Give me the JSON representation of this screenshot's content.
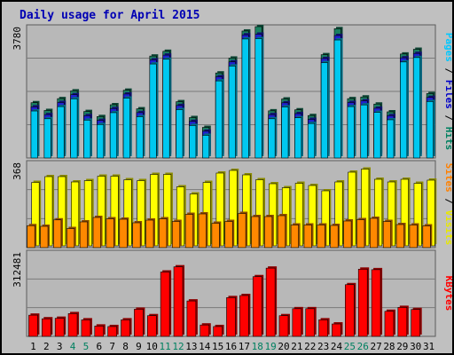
{
  "title": "Daily usage for April 2015",
  "chart_data": [
    {
      "type": "bar",
      "categories": [
        "1",
        "2",
        "3",
        "4",
        "5",
        "6",
        "7",
        "8",
        "9",
        "10",
        "11",
        "12",
        "13",
        "14",
        "15",
        "16",
        "17",
        "18",
        "19",
        "20",
        "21",
        "22",
        "23",
        "24",
        "25",
        "26",
        "27",
        "28",
        "29",
        "30",
        "31"
      ],
      "weekend_days": [
        "4",
        "5",
        "11",
        "12",
        "18",
        "19",
        "25",
        "26"
      ],
      "y_max_label": "3780",
      "ylim": [
        0,
        3780
      ],
      "right_label": [
        "Pages",
        " / ",
        "Files",
        " / ",
        "Hits"
      ],
      "right_label_colors": [
        "#00c8ff",
        "#000000",
        "#0000c8",
        "#000000",
        "#008060"
      ],
      "series": [
        {
          "name": "Hits",
          "color": "#1a8060",
          "values": [
            1530,
            1300,
            1650,
            1880,
            1270,
            1120,
            1470,
            1900,
            1350,
            2910,
            3050,
            1560,
            1090,
            800,
            2410,
            2850,
            3650,
            3780,
            1290,
            1640,
            1320,
            1150,
            2950,
            3720,
            1650,
            1700,
            1490,
            1260,
            2970,
            3110,
            1800
          ]
        },
        {
          "name": "Files",
          "color": "#2020d0",
          "values": [
            1460,
            1230,
            1590,
            1820,
            1200,
            1060,
            1410,
            1840,
            1290,
            2850,
            2990,
            1500,
            1030,
            740,
            2350,
            2790,
            3590,
            3610,
            1230,
            1580,
            1260,
            1090,
            2890,
            3570,
            1590,
            1640,
            1420,
            1200,
            2910,
            3040,
            1740
          ]
        },
        {
          "name": "Pages",
          "color": "#00c8f0",
          "values": [
            1390,
            1160,
            1520,
            1750,
            1120,
            990,
            1340,
            1770,
            1220,
            2780,
            2920,
            1430,
            960,
            670,
            2280,
            2720,
            3520,
            3530,
            1160,
            1510,
            1190,
            1020,
            2820,
            3490,
            1520,
            1570,
            1350,
            1130,
            2840,
            2970,
            1670
          ]
        }
      ]
    },
    {
      "type": "bar",
      "categories": [
        "1",
        "2",
        "3",
        "4",
        "5",
        "6",
        "7",
        "8",
        "9",
        "10",
        "11",
        "12",
        "13",
        "14",
        "15",
        "16",
        "17",
        "18",
        "19",
        "20",
        "21",
        "22",
        "23",
        "24",
        "25",
        "26",
        "27",
        "28",
        "29",
        "30",
        "31"
      ],
      "y_max_label": "368",
      "ylim": [
        0,
        368
      ],
      "right_label": [
        "Sites",
        " / ",
        "Visits"
      ],
      "right_label_colors": [
        "#ff8000",
        "#000000",
        "#e8e800"
      ],
      "series": [
        {
          "name": "Visits",
          "color": "#ffff00",
          "values": [
            286,
            312,
            312,
            288,
            294,
            314,
            314,
            298,
            294,
            322,
            322,
            266,
            234,
            286,
            328,
            340,
            320,
            298,
            280,
            262,
            282,
            272,
            248,
            288,
            332,
            346,
            300,
            288,
            300,
            282,
            296
          ]
        },
        {
          "name": "Sites",
          "color": "#ff8800",
          "values": [
            99,
            96,
            125,
            86,
            116,
            136,
            130,
            128,
            112,
            124,
            130,
            118,
            150,
            152,
            110,
            118,
            154,
            140,
            140,
            144,
            102,
            102,
            102,
            100,
            120,
            126,
            132,
            118,
            104,
            102,
            98
          ]
        }
      ]
    },
    {
      "type": "bar",
      "categories": [
        "1",
        "2",
        "3",
        "4",
        "5",
        "6",
        "7",
        "8",
        "9",
        "10",
        "11",
        "12",
        "13",
        "14",
        "15",
        "16",
        "17",
        "18",
        "19",
        "20",
        "21",
        "22",
        "23",
        "24",
        "25",
        "26",
        "27",
        "28",
        "29",
        "30",
        "31"
      ],
      "y_max_label": "312481",
      "ylim": [
        0,
        312481
      ],
      "right_label": [
        "KBytes"
      ],
      "right_label_colors": [
        "#ff0000"
      ],
      "series": [
        {
          "name": "KBytes",
          "color": "#ff0000",
          "values": [
            82000,
            68000,
            70000,
            88000,
            64000,
            40000,
            38000,
            64000,
            105000,
            80000,
            249000,
            269000,
            137000,
            44000,
            38000,
            150000,
            158000,
            231000,
            264000,
            80000,
            107000,
            107000,
            64000,
            48000,
            200000,
            260000,
            258000,
            97000,
            112000,
            104000,
            0
          ]
        }
      ]
    }
  ]
}
